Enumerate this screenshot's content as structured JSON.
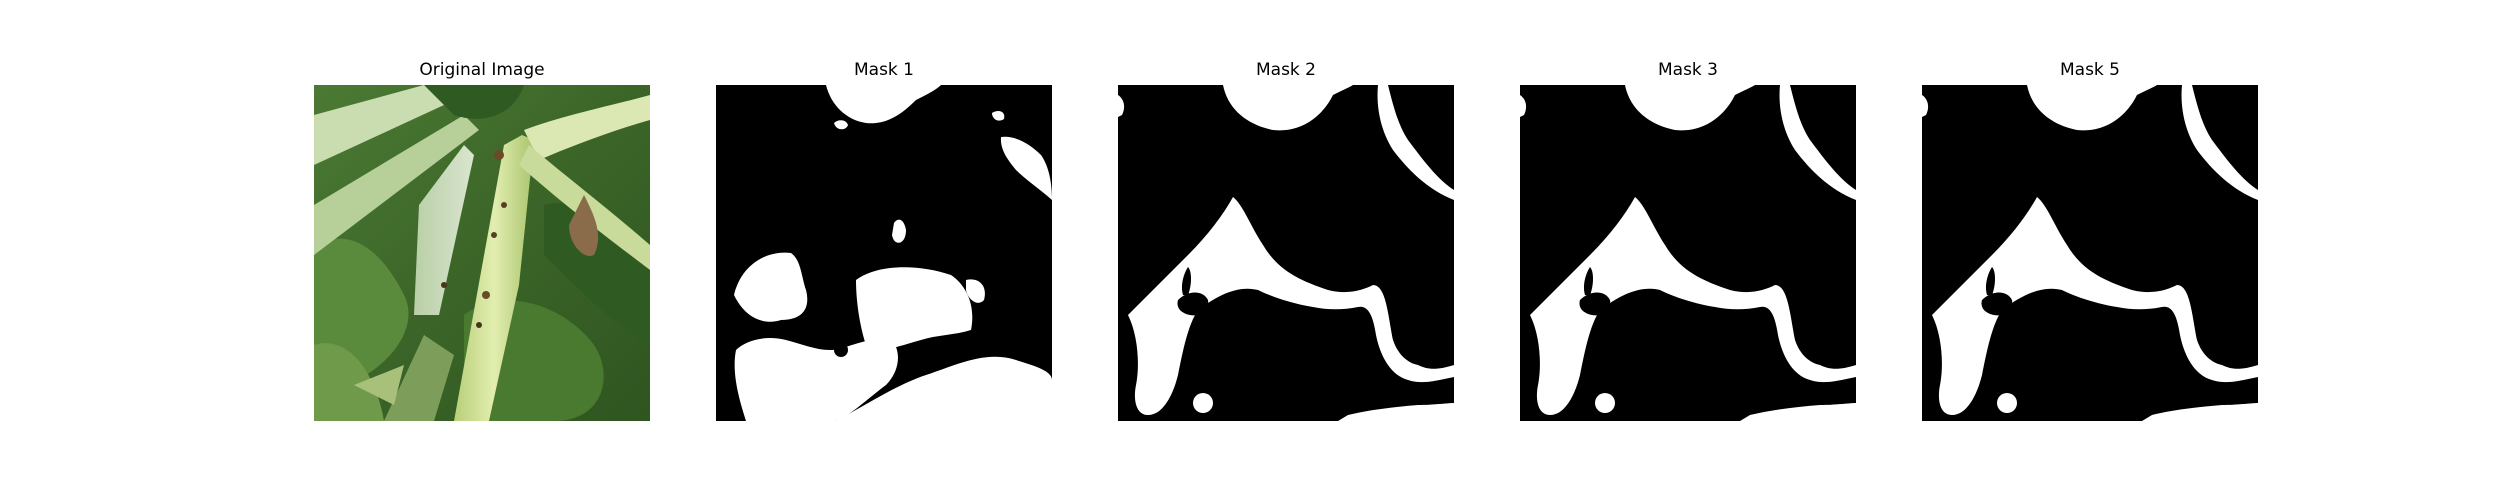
{
  "figure": {
    "panels": [
      {
        "title": "Original Image"
      },
      {
        "title": "Mask 1"
      },
      {
        "title": "Mask 2"
      },
      {
        "title": "Mask 3"
      },
      {
        "title": "Mask 5"
      }
    ],
    "colors": {
      "mask_foreground": "#ffffff",
      "mask_background": "#000000",
      "leaf_dark": "#3f6a2c",
      "leaf_mid": "#5e8a3e",
      "stem_light": "#d6e6a2",
      "stem_pale": "#c8dcb4"
    }
  }
}
